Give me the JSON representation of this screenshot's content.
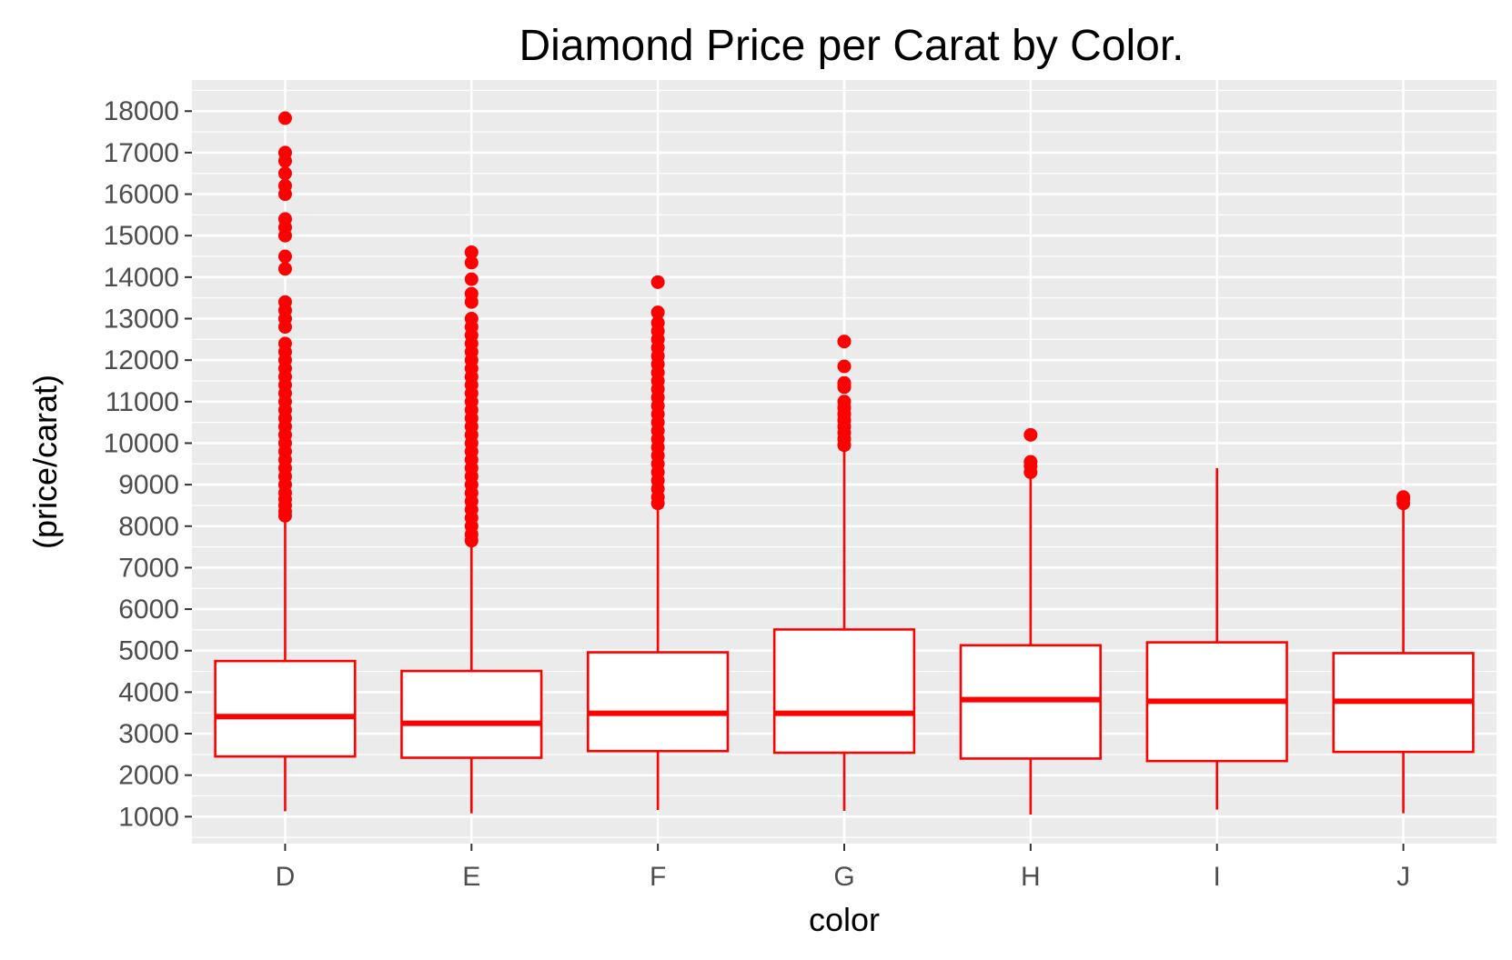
{
  "chart_data": {
    "type": "boxplot",
    "title": "Diamond Price per Carat by Color.",
    "xlabel": "color",
    "ylabel": "(price/carat)",
    "ylim": [
      350,
      18750
    ],
    "yticks": [
      1000,
      2000,
      3000,
      4000,
      5000,
      6000,
      7000,
      8000,
      9000,
      10000,
      11000,
      12000,
      13000,
      14000,
      15000,
      16000,
      17000,
      18000
    ],
    "ytick_labels": [
      "1000",
      "2000",
      "3000",
      "4000",
      "5000",
      "6000",
      "7000",
      "8000",
      "9000",
      "10000",
      "11000",
      "12000",
      "13000",
      "14000",
      "15000",
      "16000",
      "17000",
      "18000"
    ],
    "categories": [
      "D",
      "E",
      "F",
      "G",
      "H",
      "I",
      "J"
    ],
    "grid": true,
    "background_color": "#ebebeb",
    "box_color": "#ff0000",
    "boxes": [
      {
        "category": "D",
        "whisker_low": 1130,
        "q1": 2450,
        "median": 3410,
        "q3": 4750,
        "whisker_high": 8190,
        "outliers": [
          8250,
          8350,
          8500,
          8650,
          8800,
          9000,
          9200,
          9400,
          9600,
          9800,
          10000,
          10200,
          10400,
          10600,
          10800,
          11000,
          11200,
          11400,
          11600,
          11800,
          12000,
          12200,
          12400,
          12800,
          13000,
          13200,
          13400,
          14200,
          14500,
          15000,
          15200,
          15400,
          16000,
          16200,
          16500,
          16800,
          17000,
          17830
        ]
      },
      {
        "category": "E",
        "whisker_low": 1080,
        "q1": 2420,
        "median": 3250,
        "q3": 4510,
        "whisker_high": 7550,
        "outliers": [
          7650,
          7800,
          8000,
          8200,
          8400,
          8600,
          8800,
          9000,
          9200,
          9400,
          9600,
          9800,
          10000,
          10200,
          10400,
          10600,
          10800,
          11000,
          11200,
          11400,
          11600,
          11800,
          12000,
          12200,
          12400,
          12600,
          12800,
          13000,
          13400,
          13600,
          13950,
          14350,
          14600
        ]
      },
      {
        "category": "F",
        "whisker_low": 1160,
        "q1": 2580,
        "median": 3490,
        "q3": 4960,
        "whisker_high": 8470,
        "outliers": [
          8550,
          8700,
          8900,
          9100,
          9300,
          9500,
          9700,
          9900,
          10100,
          10300,
          10500,
          10700,
          10900,
          11100,
          11300,
          11500,
          11700,
          11900,
          12100,
          12300,
          12500,
          12700,
          12900,
          13150,
          13880
        ]
      },
      {
        "category": "G",
        "whisker_low": 1140,
        "q1": 2540,
        "median": 3490,
        "q3": 5510,
        "whisker_high": 9900,
        "outliers": [
          9950,
          10100,
          10250,
          10400,
          10550,
          10700,
          10850,
          11000,
          11350,
          11450,
          11850,
          12450
        ]
      },
      {
        "category": "H",
        "whisker_low": 1050,
        "q1": 2400,
        "median": 3820,
        "q3": 5130,
        "whisker_high": 9200,
        "outliers": [
          9300,
          9450,
          9550,
          10200
        ]
      },
      {
        "category": "I",
        "whisker_low": 1170,
        "q1": 2340,
        "median": 3780,
        "q3": 5200,
        "whisker_high": 9400,
        "outliers": []
      },
      {
        "category": "J",
        "whisker_low": 1080,
        "q1": 2560,
        "median": 3780,
        "q3": 4940,
        "whisker_high": 8500,
        "outliers": [
          8550,
          8650,
          8700
        ]
      }
    ]
  }
}
